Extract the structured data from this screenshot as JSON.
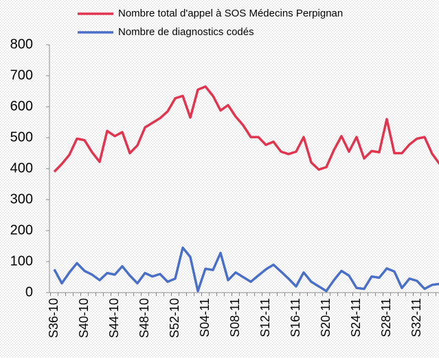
{
  "chart_data": {
    "type": "line",
    "categories": [
      "S36-10",
      null,
      null,
      null,
      "S40-10",
      null,
      null,
      null,
      "S44-10",
      null,
      null,
      null,
      "S48-10",
      null,
      null,
      null,
      "S52-10",
      null,
      null,
      null,
      "S04-11",
      null,
      null,
      null,
      "S08-11",
      null,
      null,
      null,
      "S12-11",
      null,
      null,
      null,
      "S16-11",
      null,
      null,
      null,
      "S20-11",
      null,
      null,
      null,
      "S24-11",
      null,
      null,
      null,
      "S28-11",
      null,
      null,
      null,
      "S32-11",
      null,
      null,
      null
    ],
    "series": [
      {
        "name": "Nombre total d'appel à SOS Médecins Perpignan",
        "color": "#e0344f",
        "values": [
          390,
          415,
          445,
          497,
          492,
          453,
          422,
          522,
          505,
          518,
          450,
          475,
          533,
          548,
          563,
          585,
          627,
          635,
          565,
          655,
          665,
          635,
          588,
          605,
          568,
          540,
          502,
          502,
          477,
          487,
          455,
          447,
          455,
          502,
          420,
          397,
          405,
          460,
          505,
          455,
          502,
          433,
          457,
          453,
          560,
          450,
          450,
          478,
          497,
          502,
          448,
          415
        ]
      },
      {
        "name": "Nombre de diagnostics codés",
        "color": "#4a6fc7",
        "values": [
          75,
          30,
          65,
          95,
          70,
          58,
          40,
          63,
          58,
          85,
          55,
          30,
          63,
          52,
          60,
          35,
          45,
          145,
          115,
          5,
          77,
          73,
          128,
          40,
          65,
          50,
          35,
          55,
          75,
          90,
          68,
          45,
          20,
          65,
          35,
          20,
          5,
          40,
          70,
          55,
          15,
          12,
          52,
          48,
          78,
          68,
          15,
          45,
          38,
          12,
          25,
          28
        ]
      }
    ],
    "ylim": [
      0,
      800
    ],
    "yticks": [
      0,
      100,
      200,
      300,
      400,
      500,
      600,
      700,
      800
    ],
    "grid": false
  }
}
